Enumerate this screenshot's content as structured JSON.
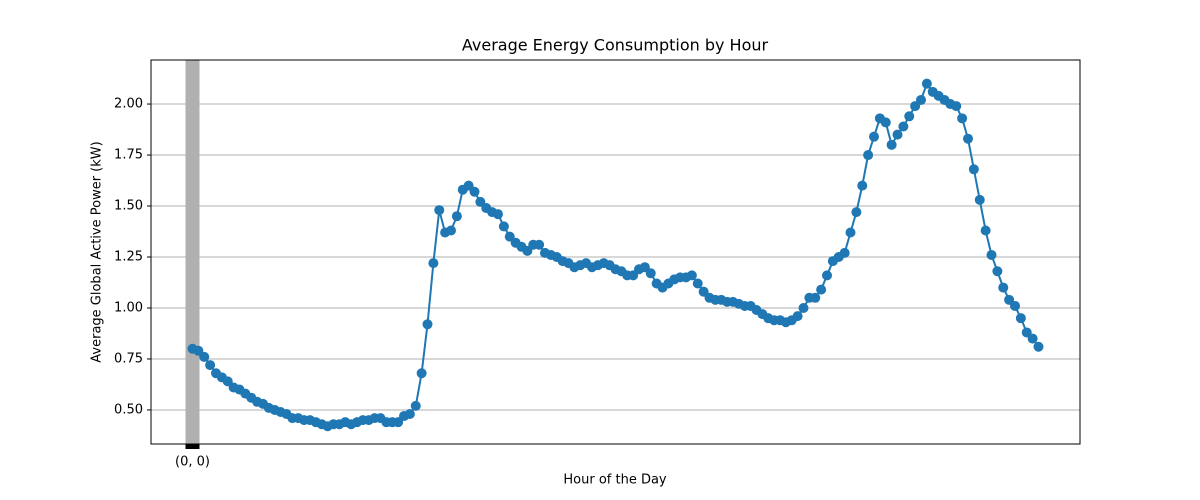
{
  "chart_data": {
    "type": "line",
    "title": "Average Energy Consumption by Hour",
    "x_label": "Hour of the Day",
    "y_label": "Average Global Active Power (kW)",
    "categories": [
      "(0, 0)",
      null,
      null,
      null,
      null,
      null,
      null,
      null,
      null,
      null,
      null,
      null,
      null,
      null,
      null,
      null,
      null,
      null,
      null,
      null,
      null,
      null,
      null,
      null,
      null,
      null,
      null,
      null,
      null,
      null,
      null,
      null,
      null,
      null,
      null,
      null,
      null,
      null,
      null,
      null,
      null,
      null,
      null,
      null,
      null,
      null,
      null,
      null,
      null,
      null,
      null,
      null,
      null,
      null,
      null,
      null,
      null,
      null,
      null,
      null,
      null,
      null,
      null,
      null,
      null,
      null,
      null,
      null,
      null,
      null,
      null,
      null,
      null,
      null,
      null,
      null,
      null,
      null,
      null,
      null,
      null,
      null,
      null,
      null,
      null,
      null,
      null,
      null,
      null,
      null,
      null,
      null,
      null,
      null,
      null,
      null,
      null,
      null,
      null,
      null,
      null,
      null,
      null,
      null,
      null,
      null,
      null,
      null,
      null,
      null,
      null,
      null,
      null,
      null,
      null,
      null,
      null,
      null,
      null,
      null,
      null,
      null,
      null,
      null,
      null,
      null,
      null,
      null,
      null,
      null,
      null,
      null,
      null,
      null,
      null,
      null,
      null,
      null,
      null,
      null,
      null,
      null,
      null,
      null,
      null
    ],
    "series": [
      {
        "color": "#1f77b4",
        "values": [
          0.8,
          0.79,
          0.76,
          0.72,
          0.68,
          0.66,
          0.64,
          0.61,
          0.6,
          0.58,
          0.56,
          0.54,
          0.53,
          0.51,
          0.5,
          0.49,
          0.48,
          0.46,
          0.46,
          0.45,
          0.45,
          0.44,
          0.43,
          0.42,
          0.43,
          0.43,
          0.44,
          0.43,
          0.44,
          0.45,
          0.45,
          0.46,
          0.46,
          0.44,
          0.44,
          0.44,
          0.47,
          0.48,
          0.52,
          0.68,
          0.92,
          1.22,
          1.48,
          1.37,
          1.38,
          1.45,
          1.58,
          1.6,
          1.57,
          1.52,
          1.49,
          1.47,
          1.46,
          1.4,
          1.35,
          1.32,
          1.3,
          1.28,
          1.31,
          1.31,
          1.27,
          1.26,
          1.25,
          1.23,
          1.22,
          1.2,
          1.21,
          1.22,
          1.2,
          1.21,
          1.22,
          1.21,
          1.19,
          1.18,
          1.16,
          1.16,
          1.19,
          1.2,
          1.17,
          1.12,
          1.1,
          1.12,
          1.14,
          1.15,
          1.15,
          1.16,
          1.12,
          1.08,
          1.05,
          1.04,
          1.04,
          1.03,
          1.03,
          1.02,
          1.01,
          1.01,
          0.99,
          0.97,
          0.95,
          0.94,
          0.94,
          0.93,
          0.94,
          0.96,
          1.0,
          1.05,
          1.05,
          1.09,
          1.16,
          1.23,
          1.25,
          1.27,
          1.37,
          1.47,
          1.6,
          1.75,
          1.84,
          1.93,
          1.91,
          1.8,
          1.85,
          1.89,
          1.94,
          1.99,
          2.02,
          2.1,
          2.06,
          2.04,
          2.02,
          2.0,
          1.99,
          1.93,
          1.83,
          1.68,
          1.53,
          1.38,
          1.26,
          1.18,
          1.1,
          1.04,
          1.01,
          0.95,
          0.88,
          0.85,
          0.81
        ]
      }
    ],
    "markers": true,
    "ylim": [
      0.333,
      2.216
    ],
    "yticks": [
      {
        "value": 0.5,
        "label": "0.50"
      },
      {
        "value": 0.75,
        "label": "0.75"
      },
      {
        "value": 1.0,
        "label": "1.00"
      },
      {
        "value": 1.25,
        "label": "1.25"
      },
      {
        "value": 1.5,
        "label": "1.50"
      },
      {
        "value": 1.75,
        "label": "1.75"
      },
      {
        "value": 2.0,
        "label": "2.00"
      }
    ],
    "grid": true
  }
}
